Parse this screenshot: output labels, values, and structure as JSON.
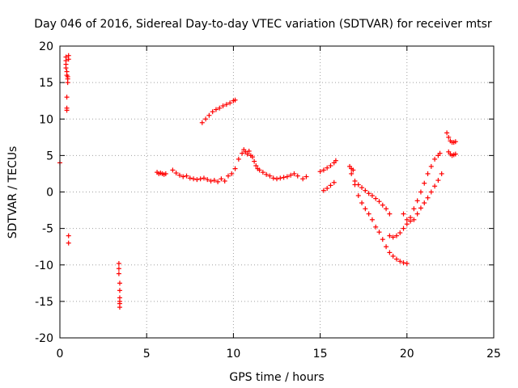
{
  "chart_data": {
    "type": "scatter",
    "title": "Day 046 of 2016, Sidereal Day-to-day VTEC variation (SDTVAR) for receiver mtsr",
    "xlabel": "GPS time / hours",
    "ylabel": "SDTVAR / TECUs",
    "xlim": [
      0,
      25
    ],
    "ylim": [
      -20,
      20
    ],
    "xticks": [
      "0",
      "5",
      "10",
      "15",
      "20",
      "25"
    ],
    "yticks": [
      "20",
      "15",
      "10",
      "5",
      "0",
      "-5",
      "-10",
      "-15",
      "-20"
    ],
    "grid": true,
    "marker": "+",
    "color": "#ff0000",
    "series": [
      {
        "name": "SDTVAR",
        "x": [
          0.0,
          0.35,
          0.35,
          0.35,
          0.35,
          0.4,
          0.4,
          0.45,
          0.45,
          0.45,
          0.5,
          0.5,
          0.4,
          0.4,
          0.4,
          0.5,
          0.5,
          3.4,
          3.4,
          3.4,
          3.45,
          3.45,
          3.45,
          3.45,
          3.45,
          3.45,
          5.6,
          5.7,
          5.8,
          5.9,
          6.0,
          6.1,
          6.5,
          6.7,
          6.9,
          7.1,
          7.3,
          7.5,
          7.7,
          7.9,
          8.1,
          8.3,
          8.5,
          8.7,
          8.9,
          9.1,
          9.3,
          9.5,
          9.7,
          9.9,
          10.1,
          10.3,
          10.5,
          10.6,
          10.7,
          10.8,
          10.9,
          11.0,
          11.1,
          11.2,
          11.3,
          11.4,
          11.5,
          11.7,
          11.9,
          12.1,
          12.3,
          12.5,
          12.7,
          12.9,
          13.1,
          13.3,
          13.5,
          13.7,
          14.0,
          14.2,
          8.2,
          8.4,
          8.6,
          8.8,
          9.0,
          9.2,
          9.4,
          9.6,
          9.8,
          10.0,
          10.1,
          15.0,
          15.2,
          15.4,
          15.6,
          15.8,
          15.9,
          15.2,
          15.4,
          15.6,
          15.8,
          16.7,
          16.8,
          16.9,
          17.0,
          17.2,
          17.4,
          17.6,
          17.8,
          18.0,
          18.2,
          18.4,
          18.6,
          18.8,
          19.0,
          16.8,
          17.0,
          17.2,
          17.4,
          17.6,
          17.8,
          18.0,
          18.2,
          18.4,
          18.6,
          18.8,
          19.0,
          19.2,
          19.4,
          19.6,
          19.8,
          20.0,
          19.0,
          19.2,
          19.4,
          19.6,
          19.8,
          20.0,
          20.2,
          20.4,
          20.6,
          20.8,
          21.0,
          21.2,
          21.4,
          21.6,
          21.8,
          21.9,
          19.8,
          20.0,
          20.2,
          20.4,
          20.6,
          20.8,
          21.0,
          21.2,
          21.4,
          21.6,
          21.8,
          22.0,
          22.3,
          22.4,
          22.5,
          22.6,
          22.7,
          22.8,
          22.4,
          22.5,
          22.6,
          22.7,
          22.8
        ],
        "y": [
          4.0,
          18.5,
          18.0,
          17.5,
          17.0,
          16.5,
          16.0,
          15.8,
          15.5,
          15.0,
          18.7,
          18.2,
          13.0,
          11.5,
          11.2,
          -6.0,
          -7.0,
          -9.8,
          -10.5,
          -11.2,
          -12.5,
          -13.5,
          -14.5,
          -15.0,
          -15.3,
          -15.8,
          2.7,
          2.5,
          2.6,
          2.5,
          2.4,
          2.5,
          3.0,
          2.6,
          2.3,
          2.1,
          2.2,
          1.9,
          1.8,
          1.7,
          1.8,
          1.9,
          1.7,
          1.5,
          1.6,
          1.4,
          1.8,
          1.5,
          2.2,
          2.5,
          3.2,
          4.5,
          5.3,
          5.8,
          5.5,
          5.2,
          5.6,
          5.0,
          4.8,
          4.2,
          3.6,
          3.2,
          3.0,
          2.7,
          2.4,
          2.2,
          1.9,
          1.8,
          1.9,
          2.0,
          2.1,
          2.3,
          2.5,
          2.2,
          1.8,
          2.1,
          9.5,
          10.0,
          10.5,
          11.0,
          11.3,
          11.5,
          11.8,
          12.0,
          12.2,
          12.5,
          12.6,
          2.8,
          3.0,
          3.3,
          3.6,
          4.0,
          4.3,
          0.2,
          0.5,
          0.9,
          1.3,
          3.5,
          3.2,
          3.0,
          1.5,
          1.0,
          0.6,
          0.2,
          -0.2,
          -0.5,
          -0.9,
          -1.3,
          -1.8,
          -2.3,
          -3.0,
          2.5,
          1.0,
          -0.5,
          -1.5,
          -2.3,
          -3.0,
          -3.8,
          -4.8,
          -5.5,
          -6.5,
          -7.5,
          -8.3,
          -8.8,
          -9.2,
          -9.5,
          -9.7,
          -9.8,
          -6.0,
          -6.2,
          -6.0,
          -5.6,
          -5.0,
          -4.4,
          -3.5,
          -2.3,
          -1.2,
          0.0,
          1.2,
          2.5,
          3.5,
          4.5,
          5.0,
          5.3,
          -3.0,
          -3.8,
          -4.0,
          -3.8,
          -3.0,
          -2.2,
          -1.5,
          -0.8,
          0.0,
          0.8,
          1.6,
          2.5,
          8.1,
          7.5,
          7.0,
          6.8,
          6.8,
          6.9,
          5.5,
          5.2,
          5.0,
          5.1,
          5.2
        ]
      }
    ]
  }
}
